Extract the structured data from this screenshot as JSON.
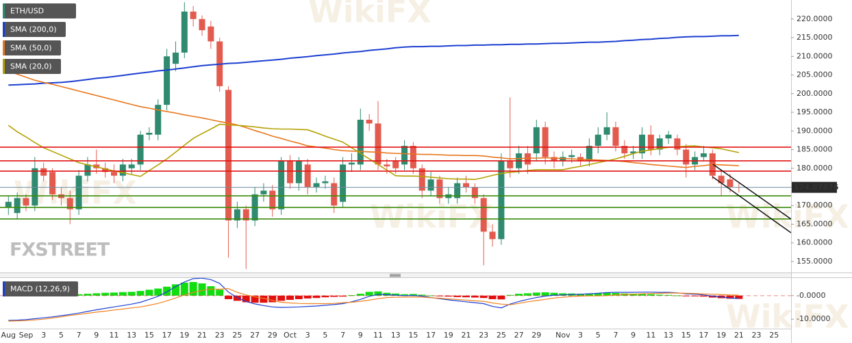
{
  "chart_data": [
    {
      "type": "candlestick",
      "categories": [
        "Aug",
        null,
        "Sep",
        null,
        "3",
        null,
        "5",
        null,
        "7",
        null,
        "9",
        null,
        "11",
        null,
        "13",
        null,
        "15",
        null,
        "17",
        null,
        "19",
        null,
        "21",
        null,
        "23",
        null,
        "25",
        null,
        "27",
        null,
        "29",
        null,
        "Oct",
        null,
        "3",
        null,
        "5",
        null,
        "7",
        null,
        "9",
        null,
        "11",
        null,
        "13",
        null,
        "15",
        null,
        "17",
        null,
        "19",
        null,
        "21",
        null,
        "23",
        null,
        "25",
        null,
        "27",
        null,
        "29",
        null,
        null,
        "Nov",
        null,
        "3",
        null,
        "5",
        null,
        "7",
        null,
        "9",
        null,
        "11",
        null,
        "13",
        null,
        "15",
        null,
        "17",
        null,
        "19",
        null,
        "21",
        null,
        "23",
        null,
        "25"
      ],
      "series": [
        {
          "name": "ETH/USD",
          "type": "candlestick",
          "color_up": "#2f8a6f",
          "color_down": "#e35b4f",
          "open": [
            169.5,
            168,
            172,
            170,
            180,
            179,
            173,
            172,
            169,
            178,
            181,
            180,
            179,
            178,
            180,
            181,
            189,
            189,
            197,
            208,
            211,
            222,
            220,
            218,
            214,
            201,
            166,
            169,
            166,
            173,
            174,
            169,
            182,
            176,
            181,
            175,
            176,
            176,
            171,
            181,
            181,
            193,
            192,
            181,
            182,
            181,
            186,
            180,
            174,
            177,
            172,
            172,
            176,
            175,
            172,
            163,
            161,
            182,
            180,
            184,
            184,
            191,
            183,
            182,
            183,
            183,
            182,
            186,
            189,
            191,
            186,
            184,
            184,
            189,
            185,
            188,
            188,
            185,
            181,
            183,
            184,
            178,
            177,
            175,
            null,
            null,
            null,
            null
          ],
          "high": [
            172.5,
            173.5,
            173,
            183,
            181.5,
            180,
            175,
            174,
            179.5,
            183,
            185,
            181.5,
            181,
            182.5,
            182.5,
            190,
            191,
            198.5,
            212,
            214,
            224.5,
            223.5,
            221,
            219.5,
            215,
            202,
            171,
            170,
            175,
            176,
            175.5,
            183,
            183.5,
            183,
            182.5,
            177.5,
            178,
            177.5,
            183,
            184,
            196,
            194.5,
            198,
            182.5,
            183,
            187.5,
            187,
            181,
            179,
            178,
            175,
            177.5,
            178,
            176,
            173,
            165,
            184,
            199,
            186,
            186,
            193,
            192.5,
            184.5,
            184.5,
            185,
            184,
            188,
            191,
            195,
            192.5,
            187.5,
            186,
            191,
            191.5,
            189,
            190,
            189,
            186.5,
            184.5,
            186,
            185,
            179.5,
            178.5,
            176,
            null,
            null,
            null,
            null
          ],
          "low": [
            167.5,
            166.5,
            168.5,
            168.5,
            176.5,
            171.5,
            170,
            165,
            167.5,
            176.5,
            178.5,
            177.5,
            176,
            176.5,
            178.5,
            179.5,
            187.5,
            187.5,
            195.5,
            206,
            209.5,
            218,
            215.5,
            212,
            200.5,
            156,
            164,
            153,
            164.5,
            171,
            167,
            167.5,
            174.5,
            174,
            173,
            173.5,
            174.5,
            168,
            169.5,
            179,
            179.5,
            190,
            179.5,
            178.5,
            178.5,
            179.5,
            178.5,
            172,
            172.5,
            170.5,
            170.5,
            170.5,
            173.5,
            170.5,
            154,
            159,
            159.5,
            177.5,
            178.5,
            178.5,
            182,
            181,
            180,
            180.5,
            181.5,
            180.5,
            180.5,
            184,
            187.5,
            184.5,
            182.5,
            182.5,
            182.5,
            183.5,
            183.5,
            186.5,
            183.5,
            177.5,
            179.5,
            182,
            177,
            172.5,
            173.5,
            173.5,
            null,
            null,
            null,
            null
          ],
          "close": [
            171,
            172,
            170,
            180,
            178,
            173,
            172,
            169,
            178,
            181,
            180,
            179,
            178,
            181,
            181,
            189,
            189.5,
            197,
            210,
            211,
            222,
            220,
            217,
            214,
            202,
            166,
            169,
            166,
            173,
            174,
            169,
            182,
            176,
            182,
            175,
            176,
            176.5,
            170,
            181,
            181.5,
            193,
            192,
            181,
            180.5,
            180,
            186,
            180,
            174,
            177,
            172,
            173,
            176,
            175,
            172,
            163,
            161,
            182,
            180,
            184,
            181,
            191,
            183,
            182,
            183,
            183.5,
            182,
            186,
            189,
            191,
            186,
            184,
            184.5,
            189,
            185,
            188,
            189,
            185,
            181,
            183,
            184,
            178,
            176,
            175,
            174.87876,
            null,
            null,
            null,
            null
          ]
        },
        {
          "name": "SMA (200,0)",
          "type": "line",
          "color": "#1c3fd1",
          "values": [
            202.3,
            202.4,
            202.5,
            202.6,
            202.8,
            202.9,
            203.0,
            203.2,
            203.5,
            203.8,
            204.1,
            204.3,
            204.6,
            204.9,
            205.2,
            205.5,
            205.8,
            206.1,
            206.3,
            206.6,
            206.9,
            207.2,
            207.5,
            207.7,
            207.9,
            208.1,
            208.2,
            208.4,
            208.6,
            208.8,
            209.0,
            209.2,
            209.5,
            209.7,
            209.9,
            210.2,
            210.4,
            210.6,
            210.9,
            211.1,
            211.3,
            211.6,
            211.8,
            212.0,
            212.3,
            212.5,
            212.6,
            212.6,
            212.7,
            212.7,
            212.8,
            212.9,
            212.9,
            213.0,
            213.0,
            213.1,
            213.1,
            213.2,
            213.2,
            213.3,
            213.3,
            213.4,
            213.5,
            213.5,
            213.6,
            213.7,
            213.8,
            213.8,
            213.9,
            214.0,
            214.2,
            214.3,
            214.5,
            214.6,
            214.8,
            214.9,
            215.1,
            215.2,
            215.3,
            215.3,
            215.4,
            215.5,
            215.5,
            215.6,
            null,
            null,
            null,
            null
          ]
        },
        {
          "name": "SMA (50,0)",
          "type": "line",
          "color": "#e8761c",
          "values": [
            206.0,
            205.2,
            204.4,
            203.6,
            203.0,
            202.5,
            201.9,
            201.3,
            200.7,
            200.1,
            199.5,
            198.9,
            198.3,
            197.7,
            197.1,
            196.5,
            196.1,
            195.6,
            195.2,
            194.8,
            194.3,
            193.9,
            193.5,
            193.0,
            192.5,
            192.1,
            191.6,
            190.9,
            190.1,
            189.4,
            188.6,
            188.0,
            187.3,
            186.7,
            186.0,
            185.7,
            185.4,
            185.0,
            184.7,
            184.6,
            184.5,
            184.4,
            184.3,
            184.1,
            184.0,
            183.9,
            183.8,
            183.7,
            183.7,
            183.6,
            183.5,
            183.5,
            183.4,
            183.4,
            183.3,
            183.0,
            182.8,
            182.5,
            182.6,
            182.7,
            182.7,
            182.8,
            182.7,
            182.6,
            182.5,
            182.4,
            182.3,
            182.2,
            182.1,
            182.0,
            181.8,
            181.5,
            181.3,
            181.0,
            180.8,
            180.6,
            180.4,
            180.2,
            180.5,
            180.7,
            181.0,
            180.9,
            180.8,
            180.7,
            null,
            null,
            null,
            null
          ]
        },
        {
          "name": "SMA (20,0)",
          "type": "line",
          "color": "#b3a100",
          "values": [
            191.5,
            189.8,
            188.4,
            186.9,
            185.5,
            184.5,
            183.5,
            182.5,
            181.5,
            180.9,
            180.4,
            179.8,
            179.3,
            178.8,
            178.3,
            177.8,
            179.4,
            180.9,
            182.5,
            184.3,
            186.2,
            188.0,
            189.3,
            190.5,
            191.8,
            191.6,
            191.5,
            191.3,
            191.1,
            190.8,
            190.6,
            190.5,
            190.5,
            190.4,
            190.3,
            189.5,
            188.6,
            187.8,
            187.0,
            185.5,
            184.0,
            182.5,
            181.0,
            179.5,
            178.0,
            177.9,
            177.9,
            177.8,
            177.6,
            177.4,
            177.2,
            177.1,
            177.1,
            177.0,
            177.5,
            178.1,
            178.6,
            178.9,
            179.1,
            179.4,
            179.6,
            179.6,
            179.6,
            179.6,
            180.1,
            180.5,
            181.0,
            181.5,
            182.0,
            182.5,
            183.2,
            183.9,
            184.6,
            184.9,
            185.3,
            185.6,
            185.7,
            185.9,
            186.0,
            185.7,
            185.5,
            185.2,
            184.7,
            184.2,
            null,
            null,
            null,
            null
          ]
        }
      ],
      "levels": [
        {
          "value": 185.66,
          "color": "#e31010"
        },
        {
          "value": 181.99,
          "color": "#e31010"
        },
        {
          "value": 179.24,
          "color": "#e31010"
        },
        {
          "value": 172.6,
          "color": "#3c8c0c"
        },
        {
          "value": 169.5,
          "color": "#3c8c0c"
        },
        {
          "value": 166.4,
          "color": "#3c8c0c"
        }
      ],
      "ylim": [
        152.06,
        225.1
      ],
      "yticks": [
        {
          "value": 155,
          "label": "155.0000"
        },
        {
          "value": 160,
          "label": "160.0000"
        },
        {
          "value": 165,
          "label": "165.0000"
        },
        {
          "value": 170,
          "label": "170.0000"
        },
        {
          "value": 175,
          "label": "175.0000"
        },
        {
          "value": 180,
          "label": "180.0000"
        },
        {
          "value": 185,
          "label": "185.0000"
        },
        {
          "value": 190,
          "label": "190.0000"
        },
        {
          "value": 195,
          "label": "195.0000"
        },
        {
          "value": 200,
          "label": "200.0000"
        },
        {
          "value": 205,
          "label": "205.0000"
        },
        {
          "value": 210,
          "label": "210.0000"
        },
        {
          "value": 215,
          "label": "215.0000"
        },
        {
          "value": 220,
          "label": "220.0000"
        }
      ]
    },
    {
      "type": "macd",
      "title": "MACD (12,26,9)",
      "histogram": [
        0.3,
        0.3,
        0.4,
        0.5,
        0.6,
        0.5,
        0.5,
        0.4,
        0.6,
        0.8,
        1.0,
        1.2,
        1.3,
        1.5,
        1.6,
        2.0,
        2.5,
        3.0,
        3.8,
        4.8,
        5.5,
        5.8,
        5.2,
        4.0,
        2.5,
        -1.5,
        -2.2,
        -2.8,
        -3.0,
        -3.0,
        -2.8,
        -2.2,
        -1.8,
        -1.5,
        -1.2,
        -1.0,
        -0.7,
        -0.5,
        -0.4,
        0.2,
        0.8,
        1.6,
        1.8,
        1.2,
        0.9,
        0.6,
        0.7,
        0.4,
        0.1,
        -0.2,
        -0.4,
        -0.6,
        -0.7,
        -0.8,
        -1.0,
        -1.5,
        -1.6,
        0.3,
        0.8,
        1.0,
        1.3,
        1.4,
        1.2,
        1.0,
        0.9,
        0.8,
        0.9,
        1.1,
        1.3,
        1.1,
        0.9,
        0.8,
        0.7,
        0.6,
        0.4,
        0.3,
        0.1,
        -0.2,
        -0.3,
        -0.4,
        -0.8,
        -1.1,
        -1.3,
        -1.4,
        null,
        null,
        null,
        null
      ],
      "color_up": "#11dd11",
      "color_down": "#e31010",
      "series": [
        {
          "color": "#1c3fd1",
          "values": [
            -10.5,
            -10.4,
            -10.2,
            -9.8,
            -9.4,
            -9.0,
            -8.5,
            -8.0,
            -7.4,
            -6.7,
            -6.0,
            -5.4,
            -4.8,
            -4.2,
            -3.6,
            -2.8,
            -1.6,
            -0.3,
            1.6,
            3.8,
            5.8,
            7.2,
            7.4,
            6.8,
            5.2,
            1.5,
            -0.8,
            -2.5,
            -3.5,
            -4.2,
            -4.8,
            -5.0,
            -4.9,
            -4.8,
            -4.6,
            -4.4,
            -4.1,
            -3.8,
            -3.4,
            -2.6,
            -1.6,
            -0.3,
            0.5,
            0.4,
            0.2,
            0.0,
            0.1,
            -0.2,
            -0.8,
            -1.3,
            -1.8,
            -2.2,
            -2.6,
            -3.0,
            -3.4,
            -4.6,
            -5.2,
            -3.6,
            -2.5,
            -1.6,
            -0.8,
            -0.2,
            0.2,
            0.3,
            0.5,
            0.6,
            0.8,
            1.0,
            1.3,
            1.4,
            1.4,
            1.4,
            1.5,
            1.5,
            1.4,
            1.4,
            1.2,
            0.8,
            0.6,
            0.3,
            -0.2,
            -0.6,
            -1.0,
            -1.2,
            null,
            null,
            null,
            null
          ]
        },
        {
          "color": "#f0821e",
          "values": [
            -10.8,
            -10.7,
            -10.6,
            -10.3,
            -10.0,
            -9.5,
            -9.0,
            -8.4,
            -8.0,
            -7.5,
            -7.0,
            -6.6,
            -6.1,
            -5.7,
            -5.2,
            -4.8,
            -4.1,
            -3.3,
            -2.2,
            -1.0,
            0.3,
            1.4,
            2.2,
            2.8,
            2.7,
            3.0,
            1.4,
            0.3,
            -0.5,
            -1.2,
            -2.0,
            -2.8,
            -3.1,
            -3.3,
            -3.4,
            -3.4,
            -3.4,
            -3.3,
            -3.0,
            -2.8,
            -2.4,
            -1.9,
            -1.3,
            -0.8,
            -0.7,
            -0.6,
            -0.6,
            -0.6,
            -0.9,
            -1.1,
            -1.4,
            -1.6,
            -1.9,
            -2.2,
            -2.4,
            -3.1,
            -3.6,
            -3.9,
            -3.3,
            -2.6,
            -2.1,
            -1.6,
            -1.0,
            -0.7,
            -0.4,
            -0.2,
            -0.1,
            -0.1,
            0.0,
            0.3,
            0.5,
            0.6,
            0.8,
            0.9,
            1.0,
            1.1,
            1.1,
            1.0,
            0.9,
            0.7,
            0.6,
            0.5,
            0.3,
            0.2,
            null,
            null,
            null,
            null
          ]
        }
      ],
      "ylim": [
        -14,
        7.5
      ],
      "yticks": [
        {
          "value": 0,
          "label": "-0.0000"
        },
        {
          "value": -10,
          "label": "-10.0000"
        }
      ]
    }
  ],
  "watermarks": {
    "brand": "FXSTREET",
    "overlay": "WikiFX"
  }
}
